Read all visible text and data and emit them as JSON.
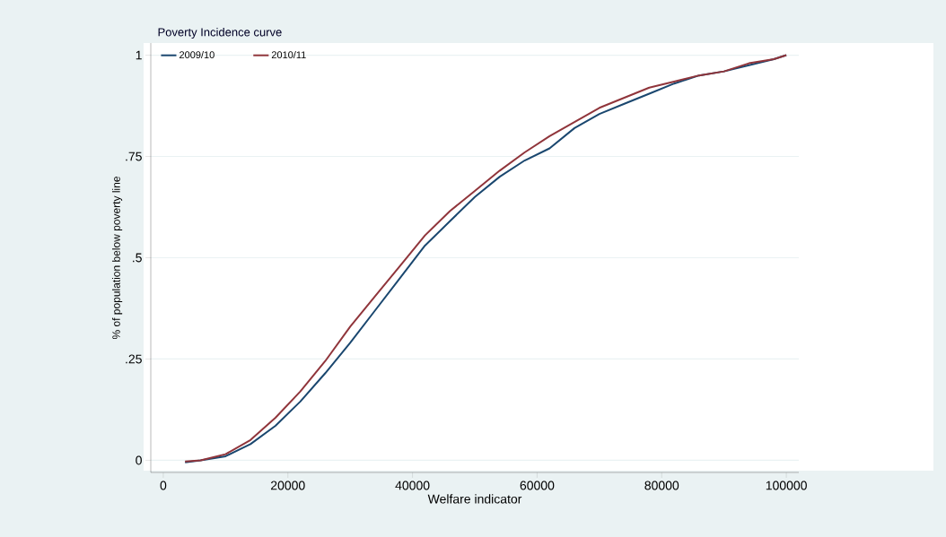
{
  "chart_data": {
    "type": "line",
    "title": "Poverty Incidence curve",
    "xlabel": "Welfare indicator",
    "ylabel": "% of population below poverty line",
    "x": [
      3500,
      6000,
      10000,
      14000,
      18000,
      22000,
      26000,
      30000,
      34000,
      38000,
      42000,
      46000,
      50000,
      54000,
      58000,
      62000,
      66000,
      70000,
      74000,
      78000,
      82000,
      86000,
      90000,
      94000,
      98000,
      100000
    ],
    "series": [
      {
        "name": "2009/10",
        "color": "#1a476f",
        "values": [
          -0.005,
          0,
          0.01,
          0.04,
          0.085,
          0.145,
          0.215,
          0.29,
          0.37,
          0.45,
          0.53,
          0.59,
          0.65,
          0.7,
          0.74,
          0.77,
          0.82,
          0.855,
          0.88,
          0.905,
          0.93,
          0.95,
          0.96,
          0.975,
          0.99,
          1.0
        ]
      },
      {
        "name": "2010/11",
        "color": "#90353b",
        "values": [
          -0.003,
          0,
          0.015,
          0.05,
          0.105,
          0.17,
          0.245,
          0.33,
          0.405,
          0.48,
          0.555,
          0.615,
          0.665,
          0.715,
          0.76,
          0.8,
          0.835,
          0.87,
          0.895,
          0.92,
          0.935,
          0.95,
          0.96,
          0.98,
          0.99,
          1.0
        ]
      }
    ],
    "xlim": [
      -2000,
      102000
    ],
    "ylim": [
      -0.03,
      1.03
    ],
    "xticks": [
      0,
      20000,
      40000,
      60000,
      80000,
      100000
    ],
    "yticks": [
      0,
      {
        "value": 0.25,
        "label": ".25"
      },
      {
        "value": 0.5,
        "label": ".5"
      },
      {
        "value": 0.75,
        "label": ".75"
      },
      1
    ],
    "grid": "y",
    "legend": "top left",
    "marker": "none",
    "line_style": "solid"
  }
}
